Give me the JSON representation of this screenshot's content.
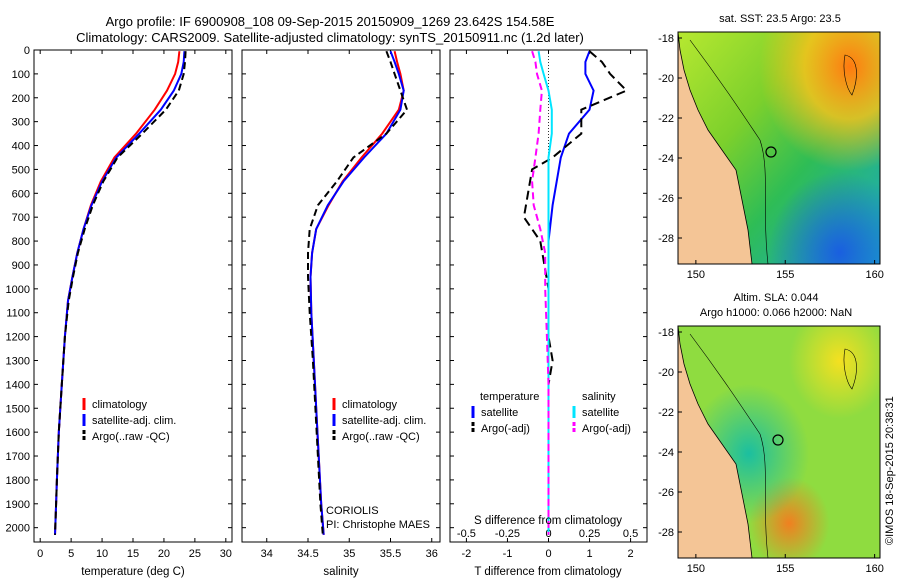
{
  "header": {
    "line1": "Argo profile: IF 6900908_108 09-Sep-2015 20150909_1269 23.642S 154.58E",
    "line2": "Climatology: CARS2009. Satellite-adjusted climatology: synTS_20150911.nc (1.2d later)"
  },
  "colors": {
    "climatology": "#ff0000",
    "satellite": "#0000ff",
    "argo": "#000000",
    "salinity_sat": "#00e5ff",
    "salinity_argo": "#ff00ff",
    "land": "#f4c596"
  },
  "chart_data": [
    {
      "id": "temperature",
      "type": "line",
      "xlabel": "temperature (deg C)",
      "ylabel": "",
      "xlim": [
        -1,
        31
      ],
      "ylim": [
        2060,
        0
      ],
      "xticks": [
        "0",
        "5",
        "10",
        "15",
        "20",
        "25",
        "30"
      ],
      "xtick_values": [
        0,
        5,
        10,
        15,
        20,
        25,
        30
      ],
      "yticks": [
        "0",
        "100",
        "200",
        "300",
        "400",
        "500",
        "600",
        "700",
        "800",
        "900",
        "1000",
        "1100",
        "1200",
        "1300",
        "1400",
        "1500",
        "1600",
        "1700",
        "1800",
        "1900",
        "2000"
      ],
      "ytick_values": [
        0,
        100,
        200,
        300,
        400,
        500,
        600,
        700,
        800,
        900,
        1000,
        1100,
        1200,
        1300,
        1400,
        1500,
        1600,
        1700,
        1800,
        1900,
        2000
      ],
      "legend": [
        "climatology",
        "satellite-adj. clim.",
        "Argo(..raw -QC)"
      ],
      "series": [
        {
          "name": "climatology",
          "color": "#ff0000",
          "dash": "",
          "points": [
            [
              22.5,
              5
            ],
            [
              22.3,
              50
            ],
            [
              21.8,
              100
            ],
            [
              20.5,
              170
            ],
            [
              18.5,
              250
            ],
            [
              15.5,
              350
            ],
            [
              12.0,
              450
            ],
            [
              9.8,
              550
            ],
            [
              8.2,
              650
            ],
            [
              7.0,
              750
            ],
            [
              6.0,
              850
            ],
            [
              5.2,
              950
            ],
            [
              4.5,
              1050
            ],
            [
              4.0,
              1200
            ],
            [
              3.5,
              1400
            ],
            [
              3.0,
              1600
            ],
            [
              2.7,
              1800
            ],
            [
              2.5,
              1950
            ],
            [
              2.4,
              2030
            ]
          ]
        },
        {
          "name": "satellite-adj. clim.",
          "color": "#0000ff",
          "dash": "",
          "points": [
            [
              23.3,
              5
            ],
            [
              23.2,
              50
            ],
            [
              22.8,
              100
            ],
            [
              21.6,
              170
            ],
            [
              19.5,
              250
            ],
            [
              16.0,
              350
            ],
            [
              12.3,
              450
            ],
            [
              10.0,
              550
            ],
            [
              8.3,
              650
            ],
            [
              7.0,
              750
            ],
            [
              6.0,
              850
            ],
            [
              5.2,
              950
            ],
            [
              4.5,
              1050
            ],
            [
              4.0,
              1200
            ],
            [
              3.5,
              1400
            ],
            [
              3.0,
              1600
            ],
            [
              2.7,
              1800
            ],
            [
              2.5,
              1950
            ],
            [
              2.4,
              2030
            ]
          ]
        },
        {
          "name": "Argo(..raw -QC)",
          "color": "#000000",
          "dash": "7,4",
          "points": [
            [
              23.5,
              5
            ],
            [
              23.4,
              50
            ],
            [
              23.2,
              100
            ],
            [
              22.4,
              170
            ],
            [
              20.3,
              250
            ],
            [
              16.5,
              350
            ],
            [
              12.5,
              450
            ],
            [
              10.2,
              550
            ],
            [
              8.5,
              650
            ],
            [
              7.2,
              750
            ],
            [
              6.1,
              850
            ],
            [
              5.3,
              950
            ],
            [
              4.6,
              1050
            ],
            [
              4.0,
              1200
            ],
            [
              3.5,
              1400
            ],
            [
              3.0,
              1600
            ],
            [
              2.7,
              1800
            ],
            [
              2.5,
              1950
            ],
            [
              2.4,
              2030
            ]
          ]
        }
      ]
    },
    {
      "id": "salinity",
      "type": "line",
      "xlabel": "salinity",
      "ylabel": "",
      "xlim": [
        33.7,
        36.1
      ],
      "ylim": [
        2060,
        0
      ],
      "xticks": [
        "34",
        "34.5",
        "35",
        "35.5",
        "36"
      ],
      "xtick_values": [
        34,
        34.5,
        35,
        35.5,
        36
      ],
      "legend": [
        "climatology",
        "satellite-adj. clim.",
        "Argo(..raw -QC)"
      ],
      "annotations": [
        "CORIOLIS",
        "PI: Christophe MAES"
      ],
      "series": [
        {
          "name": "climatology",
          "color": "#ff0000",
          "dash": "",
          "points": [
            [
              35.55,
              5
            ],
            [
              35.58,
              50
            ],
            [
              35.62,
              100
            ],
            [
              35.66,
              170
            ],
            [
              35.6,
              250
            ],
            [
              35.4,
              350
            ],
            [
              35.15,
              450
            ],
            [
              34.92,
              550
            ],
            [
              34.75,
              650
            ],
            [
              34.6,
              750
            ],
            [
              34.55,
              850
            ],
            [
              34.53,
              950
            ],
            [
              34.54,
              1100
            ],
            [
              34.57,
              1300
            ],
            [
              34.6,
              1500
            ],
            [
              34.63,
              1700
            ],
            [
              34.66,
              1900
            ],
            [
              34.69,
              2030
            ]
          ]
        },
        {
          "name": "satellite-adj. clim.",
          "color": "#0000ff",
          "dash": "",
          "points": [
            [
              35.5,
              5
            ],
            [
              35.55,
              50
            ],
            [
              35.6,
              100
            ],
            [
              35.66,
              170
            ],
            [
              35.62,
              250
            ],
            [
              35.45,
              350
            ],
            [
              35.18,
              450
            ],
            [
              34.93,
              550
            ],
            [
              34.74,
              650
            ],
            [
              34.6,
              750
            ],
            [
              34.55,
              850
            ],
            [
              34.53,
              950
            ],
            [
              34.54,
              1100
            ],
            [
              34.57,
              1300
            ],
            [
              34.6,
              1500
            ],
            [
              34.63,
              1700
            ],
            [
              34.66,
              1900
            ],
            [
              34.69,
              2030
            ]
          ]
        },
        {
          "name": "Argo(..raw -QC)",
          "color": "#000000",
          "dash": "7,4",
          "points": [
            [
              35.45,
              5
            ],
            [
              35.5,
              50
            ],
            [
              35.55,
              100
            ],
            [
              35.62,
              170
            ],
            [
              35.7,
              250
            ],
            [
              35.45,
              350
            ],
            [
              35.05,
              450
            ],
            [
              34.85,
              550
            ],
            [
              34.62,
              650
            ],
            [
              34.52,
              750
            ],
            [
              34.5,
              850
            ],
            [
              34.5,
              950
            ],
            [
              34.52,
              1100
            ],
            [
              34.56,
              1300
            ],
            [
              34.59,
              1500
            ],
            [
              34.62,
              1700
            ],
            [
              34.65,
              1900
            ],
            [
              34.68,
              2030
            ]
          ]
        }
      ]
    },
    {
      "id": "difference",
      "type": "line",
      "xlabel": "T difference from climatology",
      "x2label": "S difference from climatology",
      "xlim": [
        -2.4,
        2.4
      ],
      "ylim": [
        2060,
        0
      ],
      "xticks": [
        "-2",
        "-1",
        "0",
        "1",
        "2"
      ],
      "xtick_values": [
        -2,
        -1,
        0,
        1,
        2
      ],
      "x2ticks": [
        "-0.5",
        "-0.25",
        "0",
        "0.25",
        "0.5"
      ],
      "x2tick_values": [
        -0.5,
        -0.25,
        0,
        0.25,
        0.5
      ],
      "x2lim": [
        -0.6,
        0.6
      ],
      "legend_headers": [
        "temperature",
        "salinity"
      ],
      "legend": [
        "satellite",
        "Argo(-adj)",
        "satellite",
        "Argo(-adj)"
      ],
      "series": [
        {
          "name": "satellite",
          "axis": "T",
          "color": "#0000ff",
          "dash": "",
          "points": [
            [
              1.0,
              5
            ],
            [
              0.9,
              50
            ],
            [
              0.9,
              100
            ],
            [
              1.1,
              170
            ],
            [
              1.0,
              250
            ],
            [
              0.5,
              350
            ],
            [
              0.3,
              450
            ],
            [
              0.2,
              550
            ],
            [
              0.1,
              650
            ],
            [
              0.0,
              800
            ],
            [
              0.0,
              1000
            ],
            [
              0.0,
              2030
            ]
          ]
        },
        {
          "name": "Argo(-adj)",
          "axis": "T",
          "color": "#000000",
          "dash": "9,5",
          "points": [
            [
              1.0,
              5
            ],
            [
              1.3,
              50
            ],
            [
              1.5,
              100
            ],
            [
              1.9,
              170
            ],
            [
              0.8,
              250
            ],
            [
              0.8,
              350
            ],
            [
              0.1,
              450
            ],
            [
              -0.4,
              500
            ],
            [
              -0.5,
              600
            ],
            [
              -0.6,
              700
            ],
            [
              -0.2,
              800
            ],
            [
              -0.1,
              900
            ],
            [
              0.0,
              1000
            ],
            [
              0.0,
              1200
            ],
            [
              0.1,
              1300
            ],
            [
              0.0,
              1400
            ],
            [
              0.0,
              2030
            ]
          ]
        },
        {
          "name": "satellite",
          "axis": "S",
          "color": "#00e5ff",
          "dash": "",
          "points": [
            [
              -0.06,
              5
            ],
            [
              -0.05,
              50
            ],
            [
              -0.03,
              100
            ],
            [
              0.0,
              170
            ],
            [
              0.02,
              250
            ],
            [
              0.02,
              350
            ],
            [
              0.0,
              450
            ],
            [
              0.0,
              600
            ],
            [
              0.0,
              2030
            ]
          ]
        },
        {
          "name": "Argo(-adj)",
          "axis": "S",
          "color": "#ff00ff",
          "dash": "7,4",
          "points": [
            [
              -0.1,
              5
            ],
            [
              -0.08,
              50
            ],
            [
              -0.07,
              100
            ],
            [
              -0.04,
              170
            ],
            [
              -0.05,
              250
            ],
            [
              -0.06,
              350
            ],
            [
              -0.08,
              450
            ],
            [
              -0.1,
              550
            ],
            [
              -0.09,
              650
            ],
            [
              -0.05,
              750
            ],
            [
              -0.02,
              850
            ],
            [
              -0.02,
              1000
            ],
            [
              -0.01,
              1200
            ],
            [
              0.0,
              1400
            ],
            [
              0.0,
              2030
            ]
          ]
        }
      ]
    },
    {
      "id": "sst_map",
      "type": "heatmap",
      "title": "sat. SST: 23.5 Argo: 23.5",
      "xticks": [
        "150",
        "155",
        "160"
      ],
      "xtick_values": [
        150,
        155,
        160
      ],
      "yticks": [
        "-18",
        "-20",
        "-22",
        "-24",
        "-26",
        "-28"
      ],
      "ytick_values": [
        -18,
        -20,
        -22,
        -24,
        -26,
        -28
      ],
      "xlim": [
        149,
        160.3
      ],
      "ylim": [
        -29.3,
        -17.7
      ],
      "marker": [
        154.58,
        -23.64
      ]
    },
    {
      "id": "sla_map",
      "type": "heatmap",
      "title_line1": "Altim. SLA: 0.044",
      "title_line2": "Argo h1000: 0.066 h2000: NaN",
      "xticks": [
        "150",
        "155",
        "160"
      ],
      "xtick_values": [
        150,
        155,
        160
      ],
      "yticks": [
        "-18",
        "-20",
        "-22",
        "-24",
        "-26",
        "-28"
      ],
      "ytick_values": [
        -18,
        -20,
        -22,
        -24,
        -26,
        -28
      ],
      "xlim": [
        149,
        160.3
      ],
      "ylim": [
        -29.3,
        -17.7
      ],
      "marker": [
        154.58,
        -23.64
      ]
    }
  ],
  "footer": {
    "credit": "©IMOS 18-Sep-2015 20:38:31"
  }
}
